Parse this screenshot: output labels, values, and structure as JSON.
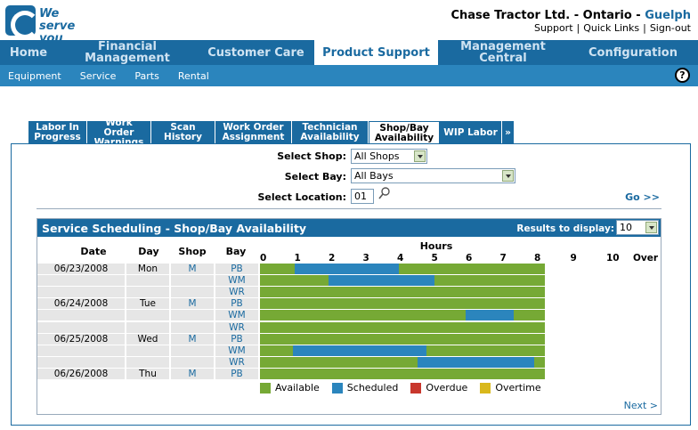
{
  "header": {
    "logo_line1": "We serve",
    "logo_line2": "you right!",
    "company": "Chase Tractor Ltd. - Ontario - ",
    "city": "Guelph",
    "links": [
      "Support",
      "Quick Links",
      "Sign-out"
    ]
  },
  "mainnav": [
    {
      "label": "Home",
      "w": 64
    },
    {
      "label": "Financial Management",
      "w": 158
    },
    {
      "label": "Customer Care",
      "w": 131
    },
    {
      "label": "Product Support",
      "w": 139,
      "active": true
    },
    {
      "label": "Management Central",
      "w": 146
    },
    {
      "label": "Configuration",
      "w": 146
    }
  ],
  "subnav": [
    "Equipment",
    "Service",
    "Parts",
    "Rental"
  ],
  "tabs": [
    {
      "label": "Labor In Progress"
    },
    {
      "label": "Work Order Warnings"
    },
    {
      "label": "Scan History"
    },
    {
      "label": "Work Order Assignment"
    },
    {
      "label": "Technician Availability"
    },
    {
      "label": "Shop/Bay Availability",
      "active": true
    },
    {
      "label": "WIP Labor"
    },
    {
      "label": "»"
    }
  ],
  "form": {
    "shop_label": "Select Shop:",
    "shop_value": "All Shops",
    "bay_label": "Select Bay:",
    "bay_value": "All Bays",
    "location_label": "Select Location:",
    "location_value": "01",
    "go": "Go >>"
  },
  "panel": {
    "title": "Service Scheduling - Shop/Bay Availability",
    "results_label": "Results to display:",
    "results_value": "10",
    "col_date": "Date",
    "col_day": "Day",
    "col_shop": "Shop",
    "col_bay": "Bay",
    "hours_label": "Hours",
    "hours": [
      "0",
      "1",
      "2",
      "3",
      "4",
      "5",
      "6",
      "7",
      "8",
      "9",
      "10",
      "Over"
    ]
  },
  "rows": [
    {
      "date": "06/23/2008",
      "day": "Mon",
      "shop": "M",
      "bay": "PB",
      "scheduled": [
        1.0,
        4.05
      ]
    },
    {
      "date": "",
      "day": "",
      "shop": "",
      "bay": "WM",
      "scheduled": [
        2.0,
        5.1
      ]
    },
    {
      "date": "",
      "day": "",
      "shop": "",
      "bay": "WR",
      "scheduled": null
    },
    {
      "date": "06/24/2008",
      "day": "Tue",
      "shop": "M",
      "bay": "PB",
      "scheduled": null
    },
    {
      "date": "",
      "day": "",
      "shop": "",
      "bay": "WM",
      "scheduled": [
        6.0,
        7.4
      ]
    },
    {
      "date": "",
      "day": "",
      "shop": "",
      "bay": "WR",
      "scheduled": null
    },
    {
      "date": "06/25/2008",
      "day": "Wed",
      "shop": "M",
      "bay": "PB",
      "scheduled": null
    },
    {
      "date": "",
      "day": "",
      "shop": "",
      "bay": "WM",
      "scheduled": [
        0.95,
        4.85
      ]
    },
    {
      "date": "",
      "day": "",
      "shop": "",
      "bay": "WR",
      "scheduled": [
        4.6,
        8.0
      ]
    },
    {
      "date": "06/26/2008",
      "day": "Thu",
      "shop": "M",
      "bay": "PB",
      "scheduled": null
    }
  ],
  "legend": [
    {
      "label": "Available",
      "color": "#76a935"
    },
    {
      "label": "Scheduled",
      "color": "#2b85bd"
    },
    {
      "label": "Overdue",
      "color": "#c8372d"
    },
    {
      "label": "Overtime",
      "color": "#d9b81c"
    }
  ],
  "next": "Next >"
}
